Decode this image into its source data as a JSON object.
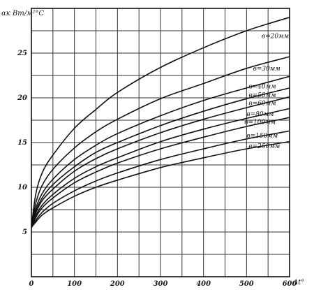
{
  "chart_data": {
    "type": "line",
    "title": "",
    "ylabel": "αк Вт/м²°С",
    "xlabel": "Δt°",
    "xlim": [
      0,
      600
    ],
    "ylim": [
      0,
      30
    ],
    "x_ticks": [
      {
        "v": 0,
        "label": "0"
      },
      {
        "v": 100,
        "label": "100"
      },
      {
        "v": 200,
        "label": "200"
      },
      {
        "v": 300,
        "label": "300"
      },
      {
        "v": 400,
        "label": "400"
      },
      {
        "v": 500,
        "label": "500"
      },
      {
        "v": 600,
        "label": "600"
      }
    ],
    "y_ticks": [
      {
        "v": 5,
        "label": "5"
      },
      {
        "v": 10,
        "label": "10"
      },
      {
        "v": 15,
        "label": "15"
      },
      {
        "v": 20,
        "label": "20"
      },
      {
        "v": 25,
        "label": "25"
      }
    ],
    "grid": true,
    "series": [
      {
        "name": "в=20мм",
        "x": [
          0,
          10,
          25,
          50,
          100,
          150,
          200,
          300,
          400,
          500,
          600
        ],
        "y": [
          5.5,
          9.2,
          11.6,
          13.6,
          16.6,
          18.7,
          20.6,
          23.4,
          25.6,
          27.5,
          29.0
        ]
      },
      {
        "name": "в=30мм",
        "x": [
          0,
          10,
          25,
          50,
          100,
          150,
          200,
          300,
          400,
          500,
          600
        ],
        "y": [
          5.5,
          8.2,
          10.2,
          12.0,
          14.4,
          16.2,
          17.6,
          19.9,
          21.6,
          23.3,
          24.6
        ]
      },
      {
        "name": "в=40мм",
        "x": [
          0,
          10,
          25,
          50,
          100,
          150,
          200,
          300,
          400,
          500,
          600
        ],
        "y": [
          5.5,
          7.6,
          9.3,
          10.9,
          13.1,
          14.7,
          16.0,
          18.0,
          19.7,
          21.1,
          22.4
        ]
      },
      {
        "name": "в=50мм",
        "x": [
          0,
          10,
          25,
          50,
          100,
          150,
          200,
          300,
          400,
          500,
          600
        ],
        "y": [
          5.5,
          7.3,
          8.8,
          10.3,
          12.3,
          13.9,
          15.0,
          16.9,
          18.5,
          19.9,
          21.1
        ]
      },
      {
        "name": "в=60мм",
        "x": [
          0,
          10,
          25,
          50,
          100,
          150,
          200,
          300,
          400,
          500,
          600
        ],
        "y": [
          5.5,
          7.1,
          8.5,
          9.8,
          11.8,
          13.2,
          14.3,
          16.1,
          17.6,
          18.9,
          20.1
        ]
      },
      {
        "name": "в=80мм",
        "x": [
          0,
          10,
          25,
          50,
          100,
          150,
          200,
          300,
          400,
          500,
          600
        ],
        "y": [
          5.5,
          6.8,
          8.0,
          9.2,
          11.0,
          12.3,
          13.3,
          15.1,
          16.5,
          17.7,
          18.8
        ]
      },
      {
        "name": "в=100мм",
        "x": [
          0,
          10,
          25,
          50,
          100,
          150,
          200,
          300,
          400,
          500,
          600
        ],
        "y": [
          5.5,
          6.6,
          7.7,
          8.8,
          10.5,
          11.7,
          12.7,
          14.3,
          15.6,
          16.8,
          17.8
        ]
      },
      {
        "name": "в=150мм",
        "x": [
          0,
          10,
          25,
          50,
          100,
          150,
          200,
          300,
          400,
          500,
          600
        ],
        "y": [
          5.5,
          6.3,
          7.2,
          8.2,
          9.6,
          10.7,
          11.6,
          13.1,
          14.3,
          15.4,
          16.3
        ]
      },
      {
        "name": "в=250мм",
        "x": [
          0,
          10,
          25,
          50,
          100,
          150,
          200,
          300,
          400,
          500,
          600
        ],
        "y": [
          5.5,
          6.1,
          6.9,
          7.7,
          9.0,
          10.0,
          10.8,
          12.2,
          13.3,
          14.3,
          15.1
        ]
      }
    ]
  }
}
